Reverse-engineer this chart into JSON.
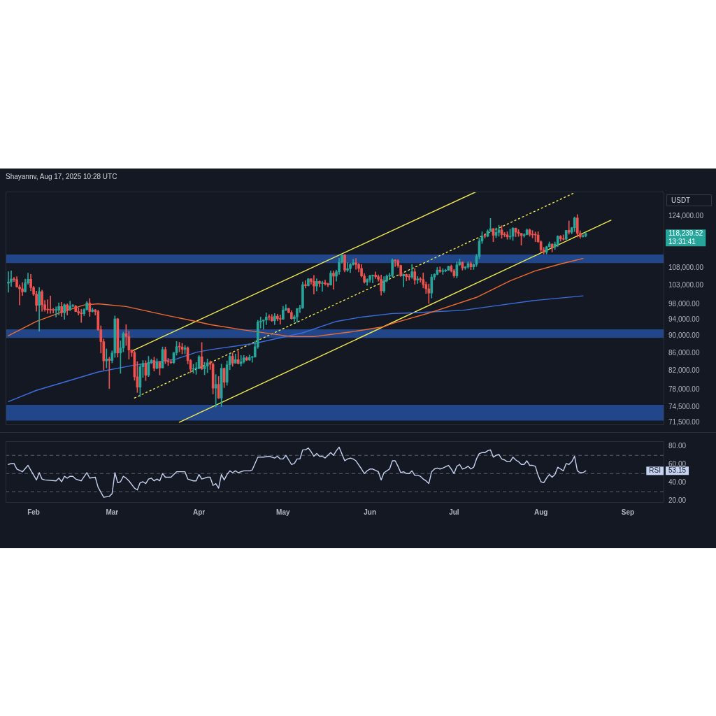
{
  "chart_data": [
    {
      "type": "candlestick",
      "title": "Shayannv, Aug 17, 2025 10:28 UTC",
      "ylabel": "USDT",
      "log": true,
      "tick_labels": "y",
      "xlim": [
        "2025-01-22",
        "2025-09-14"
      ],
      "ylim": [
        71000,
        132300
      ],
      "yticks": [
        {
          "value": 124000,
          "label": "124,000.00"
        },
        {
          "value": 108000,
          "label": "108,000.00"
        },
        {
          "value": 103000,
          "label": "103,000.00"
        },
        {
          "value": 98000,
          "label": "98,000.00"
        },
        {
          "value": 94000,
          "label": "94,000.00"
        },
        {
          "value": 90000,
          "label": "90,000.00"
        },
        {
          "value": 86000,
          "label": "86,000.00"
        },
        {
          "value": 82000,
          "label": "82,000.00"
        },
        {
          "value": 78000,
          "label": "78,000.00"
        },
        {
          "value": 74500,
          "label": "74,500.00"
        },
        {
          "value": 71500,
          "label": "71,500.00"
        }
      ],
      "x": [
        "2025-01-23",
        "2025-01-24",
        "2025-01-25",
        "2025-01-26",
        "2025-01-27",
        "2025-01-28",
        "2025-01-29",
        "2025-01-30",
        "2025-01-31",
        "2025-02-01",
        "2025-02-02",
        "2025-02-03",
        "2025-02-04",
        "2025-02-05",
        "2025-02-06",
        "2025-02-07",
        "2025-02-08",
        "2025-02-09",
        "2025-02-10",
        "2025-02-11",
        "2025-02-12",
        "2025-02-13",
        "2025-02-14",
        "2025-02-15",
        "2025-02-16",
        "2025-02-17",
        "2025-02-18",
        "2025-02-19",
        "2025-02-20",
        "2025-02-21",
        "2025-02-22",
        "2025-02-23",
        "2025-02-24",
        "2025-02-25",
        "2025-02-26",
        "2025-02-27",
        "2025-02-28",
        "2025-03-01",
        "2025-03-02",
        "2025-03-03",
        "2025-03-04",
        "2025-03-05",
        "2025-03-06",
        "2025-03-07",
        "2025-03-08",
        "2025-03-09",
        "2025-03-10",
        "2025-03-11",
        "2025-03-12",
        "2025-03-13",
        "2025-03-14",
        "2025-03-15",
        "2025-03-16",
        "2025-03-17",
        "2025-03-18",
        "2025-03-19",
        "2025-03-20",
        "2025-03-21",
        "2025-03-22",
        "2025-03-23",
        "2025-03-24",
        "2025-03-25",
        "2025-03-26",
        "2025-03-27",
        "2025-03-28",
        "2025-03-29",
        "2025-03-30",
        "2025-03-31",
        "2025-04-01",
        "2025-04-02",
        "2025-04-03",
        "2025-04-04",
        "2025-04-05",
        "2025-04-06",
        "2025-04-07",
        "2025-04-08",
        "2025-04-09",
        "2025-04-10",
        "2025-04-11",
        "2025-04-12",
        "2025-04-13",
        "2025-04-14",
        "2025-04-15",
        "2025-04-16",
        "2025-04-17",
        "2025-04-18",
        "2025-04-19",
        "2025-04-20",
        "2025-04-21",
        "2025-04-22",
        "2025-04-23",
        "2025-04-24",
        "2025-04-25",
        "2025-04-26",
        "2025-04-27",
        "2025-04-28",
        "2025-04-29",
        "2025-04-30",
        "2025-05-01",
        "2025-05-02",
        "2025-05-03",
        "2025-05-04",
        "2025-05-05",
        "2025-05-06",
        "2025-05-07",
        "2025-05-08",
        "2025-05-09",
        "2025-05-10",
        "2025-05-11",
        "2025-05-12",
        "2025-05-13",
        "2025-05-14",
        "2025-05-15",
        "2025-05-16",
        "2025-05-17",
        "2025-05-18",
        "2025-05-19",
        "2025-05-20",
        "2025-05-21",
        "2025-05-22",
        "2025-05-23",
        "2025-05-24",
        "2025-05-25",
        "2025-05-26",
        "2025-05-27",
        "2025-05-28",
        "2025-05-29",
        "2025-05-30",
        "2025-05-31",
        "2025-06-01",
        "2025-06-02",
        "2025-06-03",
        "2025-06-04",
        "2025-06-05",
        "2025-06-06",
        "2025-06-07",
        "2025-06-08",
        "2025-06-09",
        "2025-06-10",
        "2025-06-11",
        "2025-06-12",
        "2025-06-13",
        "2025-06-14",
        "2025-06-15",
        "2025-06-16",
        "2025-06-17",
        "2025-06-18",
        "2025-06-19",
        "2025-06-20",
        "2025-06-21",
        "2025-06-22",
        "2025-06-23",
        "2025-06-24",
        "2025-06-25",
        "2025-06-26",
        "2025-06-27",
        "2025-06-28",
        "2025-06-29",
        "2025-06-30",
        "2025-07-01",
        "2025-07-02",
        "2025-07-03",
        "2025-07-04",
        "2025-07-05",
        "2025-07-06",
        "2025-07-07",
        "2025-07-08",
        "2025-07-09",
        "2025-07-10",
        "2025-07-11",
        "2025-07-12",
        "2025-07-13",
        "2025-07-14",
        "2025-07-15",
        "2025-07-16",
        "2025-07-17",
        "2025-07-18",
        "2025-07-19",
        "2025-07-20",
        "2025-07-21",
        "2025-07-22",
        "2025-07-23",
        "2025-07-24",
        "2025-07-25",
        "2025-07-26",
        "2025-07-27",
        "2025-07-28",
        "2025-07-29",
        "2025-07-30",
        "2025-07-31",
        "2025-08-01",
        "2025-08-02",
        "2025-08-03",
        "2025-08-04",
        "2025-08-05",
        "2025-08-06",
        "2025-08-07",
        "2025-08-08",
        "2025-08-09",
        "2025-08-10",
        "2025-08-11",
        "2025-08-12",
        "2025-08-13",
        "2025-08-14",
        "2025-08-15",
        "2025-08-16",
        "2025-08-17"
      ],
      "ohlc": [
        [
          103650,
          106850,
          101200,
          103950
        ],
        [
          103950,
          107100,
          102750,
          104800
        ],
        [
          104800,
          105300,
          104100,
          104650
        ],
        [
          104650,
          105500,
          102500,
          102600
        ],
        [
          102600,
          103200,
          97800,
          102100
        ],
        [
          102100,
          103800,
          100300,
          101300
        ],
        [
          101300,
          104800,
          101200,
          103750
        ],
        [
          103750,
          106450,
          103300,
          104750
        ],
        [
          104750,
          106100,
          101550,
          102450
        ],
        [
          102450,
          102800,
          100300,
          100650
        ],
        [
          100650,
          101500,
          96150,
          97700
        ],
        [
          97700,
          102500,
          91200,
          101350
        ],
        [
          101350,
          101750,
          96150,
          97850
        ],
        [
          97850,
          99000,
          96150,
          96600
        ],
        [
          96600,
          99200,
          95650,
          96550
        ],
        [
          96550,
          100150,
          95650,
          96500
        ],
        [
          96500,
          96900,
          95700,
          96450
        ],
        [
          96450,
          97300,
          94700,
          96450
        ],
        [
          96450,
          98350,
          95250,
          97400
        ],
        [
          97400,
          98500,
          94850,
          95800
        ],
        [
          95800,
          98100,
          94100,
          97850
        ],
        [
          97850,
          98100,
          95200,
          96600
        ],
        [
          96600,
          98800,
          96300,
          97500
        ],
        [
          97500,
          97950,
          97250,
          97550
        ],
        [
          97550,
          97700,
          96050,
          96100
        ],
        [
          96100,
          97050,
          95200,
          95750
        ],
        [
          95750,
          96700,
          93350,
          95550
        ],
        [
          95550,
          96850,
          95050,
          96600
        ],
        [
          96600,
          98750,
          96400,
          98350
        ],
        [
          98350,
          99500,
          94850,
          96100
        ],
        [
          96100,
          96950,
          95950,
          96550
        ],
        [
          96550,
          96650,
          95200,
          96100
        ],
        [
          96100,
          96500,
          91350,
          91550
        ],
        [
          91550,
          92500,
          86050,
          88700
        ],
        [
          88700,
          89300,
          82250,
          84250
        ],
        [
          84250,
          87000,
          82700,
          84700
        ],
        [
          84700,
          85100,
          78250,
          84350
        ],
        [
          84350,
          86550,
          83800,
          86050
        ],
        [
          86050,
          95000,
          85050,
          94250
        ],
        [
          94250,
          94400,
          85100,
          86050
        ],
        [
          86050,
          88900,
          81500,
          87200
        ],
        [
          87200,
          91000,
          86300,
          90600
        ],
        [
          90600,
          92800,
          87800,
          89950
        ],
        [
          89950,
          91200,
          84650,
          86750
        ],
        [
          86750,
          86800,
          85250,
          86150
        ],
        [
          86150,
          86500,
          80000,
          80750
        ],
        [
          80750,
          84100,
          77450,
          78550
        ],
        [
          78550,
          83600,
          76600,
          82950
        ],
        [
          82950,
          84350,
          80600,
          83700
        ],
        [
          83700,
          84300,
          79950,
          81100
        ],
        [
          81100,
          85300,
          80800,
          83950
        ],
        [
          83950,
          84650,
          83650,
          84350
        ],
        [
          84350,
          85100,
          82000,
          82600
        ],
        [
          82600,
          84750,
          82450,
          84050
        ],
        [
          84050,
          84100,
          81150,
          82700
        ],
        [
          82700,
          87450,
          82650,
          86850
        ],
        [
          86850,
          87450,
          83650,
          84200
        ],
        [
          84200,
          84850,
          83200,
          84050
        ],
        [
          84050,
          84550,
          83650,
          83850
        ],
        [
          83850,
          86200,
          83650,
          86100
        ],
        [
          86100,
          88750,
          85550,
          87500
        ],
        [
          87500,
          88550,
          86300,
          87450
        ],
        [
          87450,
          88300,
          85850,
          86900
        ],
        [
          86900,
          87800,
          85850,
          87250
        ],
        [
          87250,
          87500,
          83600,
          84350
        ],
        [
          84350,
          84600,
          81650,
          82400
        ],
        [
          82400,
          83500,
          81550,
          82550
        ],
        [
          82550,
          83900,
          81300,
          82550
        ],
        [
          82550,
          85500,
          82450,
          85200
        ],
        [
          85200,
          88500,
          82300,
          82500
        ],
        [
          82500,
          83950,
          81200,
          83100
        ],
        [
          83100,
          84700,
          81650,
          83850
        ],
        [
          83850,
          84250,
          82350,
          83500
        ],
        [
          83500,
          83800,
          77150,
          78350
        ],
        [
          78350,
          81250,
          74500,
          79150
        ],
        [
          79150,
          80850,
          76200,
          76300
        ],
        [
          76300,
          83550,
          74600,
          82600
        ],
        [
          82600,
          82700,
          78450,
          79600
        ],
        [
          79600,
          84250,
          78950,
          83400
        ],
        [
          83400,
          85900,
          82300,
          85300
        ],
        [
          85300,
          86100,
          83050,
          83750
        ],
        [
          83750,
          85800,
          83700,
          84550
        ],
        [
          84550,
          86500,
          83600,
          83650
        ],
        [
          83650,
          85500,
          83100,
          84050
        ],
        [
          84050,
          85500,
          83750,
          84950
        ],
        [
          84950,
          85250,
          84300,
          84450
        ],
        [
          84450,
          85600,
          84350,
          85050
        ],
        [
          85050,
          85300,
          83950,
          85150
        ],
        [
          85150,
          88850,
          85050,
          87500
        ],
        [
          87500,
          93900,
          87100,
          93450
        ],
        [
          93450,
          94700,
          91950,
          93700
        ],
        [
          93700,
          94000,
          91650,
          93950
        ],
        [
          93950,
          95750,
          92800,
          94700
        ],
        [
          94700,
          95300,
          93900,
          94650
        ],
        [
          94650,
          95350,
          93600,
          93750
        ],
        [
          93750,
          95600,
          92800,
          94950
        ],
        [
          94950,
          95450,
          93750,
          94250
        ],
        [
          94250,
          95250,
          92900,
          94150
        ],
        [
          94150,
          97450,
          94100,
          96500
        ],
        [
          96500,
          97900,
          96300,
          96900
        ],
        [
          96900,
          96950,
          95750,
          95850
        ],
        [
          95850,
          96300,
          94150,
          94300
        ],
        [
          94300,
          95200,
          93500,
          94750
        ],
        [
          94750,
          96900,
          93400,
          96850
        ],
        [
          96850,
          97750,
          95800,
          97050
        ],
        [
          97050,
          104000,
          96900,
          103250
        ],
        [
          103250,
          104350,
          102300,
          102950
        ],
        [
          102950,
          104950,
          102850,
          104850
        ],
        [
          104850,
          104950,
          103350,
          104150
        ],
        [
          104150,
          105800,
          100700,
          102850
        ],
        [
          102850,
          104900,
          101500,
          104150
        ],
        [
          104150,
          104300,
          102650,
          103550
        ],
        [
          103550,
          104200,
          101400,
          103750
        ],
        [
          103750,
          104550,
          103100,
          103500
        ],
        [
          103500,
          103700,
          102650,
          103150
        ],
        [
          103150,
          107100,
          103100,
          106450
        ],
        [
          106450,
          107100,
          102000,
          105600
        ],
        [
          105600,
          107300,
          104200,
          106850
        ],
        [
          106850,
          110800,
          106100,
          109650
        ],
        [
          109650,
          111950,
          109300,
          111700
        ],
        [
          111700,
          111900,
          106800,
          107300
        ],
        [
          107300,
          109500,
          106900,
          107750
        ],
        [
          107750,
          109300,
          106600,
          108950
        ],
        [
          108950,
          110450,
          108700,
          109450
        ],
        [
          109450,
          110700,
          107550,
          108950
        ],
        [
          108950,
          109300,
          106800,
          107800
        ],
        [
          107800,
          108900,
          105350,
          105650
        ],
        [
          105650,
          106300,
          103650,
          103950
        ],
        [
          103950,
          104900,
          103050,
          104650
        ],
        [
          104650,
          105900,
          103900,
          105700
        ],
        [
          105700,
          105950,
          103700,
          105900
        ],
        [
          105900,
          106800,
          104900,
          105450
        ],
        [
          105450,
          105950,
          104200,
          104750
        ],
        [
          104750,
          105900,
          100400,
          101550
        ],
        [
          101550,
          105500,
          101100,
          104300
        ],
        [
          104300,
          105950,
          103950,
          105600
        ],
        [
          105600,
          106450,
          104950,
          105750
        ],
        [
          105750,
          110600,
          105350,
          110250
        ],
        [
          110250,
          110400,
          108350,
          110000
        ],
        [
          110000,
          110400,
          108100,
          108650
        ],
        [
          108650,
          108800,
          105500,
          105650
        ],
        [
          105650,
          106200,
          102650,
          106100
        ],
        [
          106100,
          106200,
          104300,
          105450
        ],
        [
          105450,
          106150,
          104500,
          105350
        ],
        [
          105350,
          108950,
          104950,
          106850
        ],
        [
          106850,
          107800,
          103350,
          104500
        ],
        [
          104500,
          105550,
          103550,
          104850
        ],
        [
          104850,
          105250,
          103900,
          104650
        ],
        [
          104650,
          106500,
          102350,
          103300
        ],
        [
          103300,
          104000,
          100850,
          102100
        ],
        [
          102100,
          103400,
          98200,
          100950
        ],
        [
          100950,
          106100,
          99600,
          105350
        ],
        [
          105350,
          106300,
          104600,
          106100
        ],
        [
          106100,
          108100,
          105950,
          107350
        ],
        [
          107350,
          108250,
          106650,
          106950
        ],
        [
          106950,
          107750,
          106100,
          107050
        ],
        [
          107050,
          107600,
          106850,
          107300
        ],
        [
          107300,
          108500,
          107200,
          108400
        ],
        [
          108400,
          108800,
          106750,
          107150
        ],
        [
          107150,
          107550,
          105250,
          105700
        ],
        [
          105700,
          109750,
          105100,
          108850
        ],
        [
          108850,
          110550,
          108600,
          109600
        ],
        [
          109600,
          109750,
          107300,
          107950
        ],
        [
          107950,
          108400,
          107500,
          108200
        ],
        [
          108200,
          109700,
          107800,
          109200
        ],
        [
          109200,
          109700,
          107450,
          108250
        ],
        [
          108250,
          109200,
          107500,
          108950
        ],
        [
          108950,
          111950,
          108350,
          111300
        ],
        [
          111300,
          116850,
          110600,
          115950
        ],
        [
          115950,
          118850,
          115200,
          117500
        ],
        [
          117500,
          118200,
          116900,
          117450
        ],
        [
          117450,
          119500,
          117250,
          119100
        ],
        [
          119100,
          123200,
          118900,
          119850
        ],
        [
          119850,
          119950,
          115750,
          117750
        ],
        [
          117750,
          120100,
          117000,
          118650
        ],
        [
          118650,
          120950,
          117450,
          119450
        ],
        [
          119450,
          120850,
          116800,
          117950
        ],
        [
          117950,
          118650,
          117300,
          117900
        ],
        [
          117900,
          118900,
          116500,
          117250
        ],
        [
          117250,
          119700,
          116500,
          117450
        ],
        [
          117450,
          120250,
          116150,
          120000
        ],
        [
          120000,
          120100,
          117300,
          118750
        ],
        [
          118750,
          119550,
          117400,
          118350
        ],
        [
          118350,
          118450,
          114700,
          117650
        ],
        [
          117650,
          118300,
          117150,
          117950
        ],
        [
          117950,
          119800,
          117850,
          119450
        ],
        [
          119450,
          119800,
          117450,
          118050
        ],
        [
          118050,
          119250,
          116950,
          117900
        ],
        [
          117900,
          118800,
          115750,
          117850
        ],
        [
          117850,
          118900,
          115500,
          115750
        ],
        [
          115750,
          116050,
          112700,
          113300
        ],
        [
          113300,
          114050,
          112000,
          112550
        ],
        [
          112550,
          114400,
          112000,
          114200
        ],
        [
          114200,
          115700,
          114100,
          115050
        ],
        [
          115050,
          115100,
          112650,
          114100
        ],
        [
          114100,
          115700,
          113350,
          115000
        ],
        [
          115000,
          117650,
          114250,
          117450
        ],
        [
          117450,
          117700,
          115900,
          116650
        ],
        [
          116650,
          117900,
          116250,
          116500
        ],
        [
          116500,
          119350,
          116450,
          119300
        ],
        [
          119300,
          122350,
          118100,
          118700
        ],
        [
          118700,
          120300,
          118200,
          120150
        ],
        [
          120150,
          123650,
          118900,
          123300
        ],
        [
          123300,
          124450,
          117200,
          118350
        ],
        [
          118350,
          119200,
          116800,
          117350
        ],
        [
          117350,
          117950,
          117150,
          117650
        ],
        [
          117650,
          118600,
          117250,
          118239.52
        ]
      ],
      "series": [
        {
          "type": "line",
          "color": "#f26b2f",
          "x": [
            "2025-01-23",
            "2025-02-02",
            "2025-02-10",
            "2025-02-19",
            "2025-02-24",
            "2025-03-06",
            "2025-03-20",
            "2025-03-31",
            "2025-04-05",
            "2025-04-17",
            "2025-05-04",
            "2025-05-12",
            "2025-05-25",
            "2025-06-06",
            "2025-06-09",
            "2025-06-14",
            "2025-06-22",
            "2025-07-09",
            "2025-07-21",
            "2025-07-30",
            "2025-08-08",
            "2025-08-16"
          ],
          "values": [
            90100,
            93600,
            95700,
            97800,
            98100,
            97400,
            95200,
            93600,
            92800,
            91500,
            89900,
            89900,
            91000,
            92300,
            93100,
            94100,
            95700,
            99800,
            104300,
            107100,
            109100,
            110700
          ]
        },
        {
          "type": "line",
          "color": "#3b6fe0",
          "x": [
            "2025-01-23",
            "2025-02-02",
            "2025-02-14",
            "2025-02-24",
            "2025-03-08",
            "2025-03-24",
            "2025-03-31",
            "2025-04-05",
            "2025-04-21",
            "2025-05-08",
            "2025-05-20",
            "2025-05-29",
            "2025-06-09",
            "2025-06-14",
            "2025-07-04",
            "2025-07-13",
            "2025-07-30",
            "2025-08-16"
          ],
          "values": [
            75600,
            77900,
            80000,
            81800,
            83200,
            84700,
            86200,
            86800,
            88300,
            90800,
            93600,
            94700,
            95600,
            95700,
            96400,
            97300,
            99000,
            100200
          ]
        },
        {
          "type": "line",
          "color": "#f2e94e",
          "line_style": "solid",
          "x": [
            "2025-03-08",
            "2025-07-09"
          ],
          "values": [
            86500,
            132300
          ]
        },
        {
          "type": "line",
          "color": "#f2e94e",
          "line_style": "dotted",
          "x": [
            "2025-03-09",
            "2025-08-13"
          ],
          "values": [
            76330,
            131900
          ]
        },
        {
          "type": "line",
          "color": "#f2e94e",
          "line_style": "solid",
          "x": [
            "2025-03-25",
            "2025-08-26"
          ],
          "values": [
            71550,
            122600
          ]
        }
      ],
      "bands": [
        {
          "axis": "y",
          "from": 109330,
          "to": 111850,
          "color": "#21468a"
        },
        {
          "axis": "y",
          "from": 89580,
          "to": 91640,
          "color": "#21468a"
        },
        {
          "axis": "y",
          "from": 71870,
          "to": 74950,
          "color": "#21468a"
        }
      ],
      "annotations": [
        "118,239.52",
        "13:31:41"
      ]
    },
    {
      "type": "line",
      "xlim": [
        "2025-01-22",
        "2025-09-14"
      ],
      "xticks": [
        {
          "value": "2025-02-01",
          "label": "Feb"
        },
        {
          "value": "2025-03-01",
          "label": "Mar"
        },
        {
          "value": "2025-04-01",
          "label": "Apr"
        },
        {
          "value": "2025-05-01",
          "label": "May"
        },
        {
          "value": "2025-06-01",
          "label": "Jun"
        },
        {
          "value": "2025-07-01",
          "label": "Jul"
        },
        {
          "value": "2025-08-01",
          "label": "Aug"
        },
        {
          "value": "2025-09-01",
          "label": "Sep"
        }
      ],
      "ylim": [
        18,
        85.5
      ],
      "yticks": [
        {
          "value": 80,
          "label": "80.00"
        },
        {
          "value": 60,
          "label": "60.00"
        },
        {
          "value": 40,
          "label": "40.00"
        },
        {
          "value": 20,
          "label": "20.00"
        }
      ],
      "ref_lines": [
        {
          "axis": "y",
          "value": 70,
          "line_style": "dashed",
          "color": "#5d606b"
        },
        {
          "axis": "y",
          "value": 50,
          "line_style": "dashed",
          "color": "#5d606b"
        },
        {
          "axis": "y",
          "value": 30,
          "line_style": "dashed",
          "color": "#5d606b"
        }
      ],
      "series": [
        {
          "name": "RSI",
          "color": "#c5d3f0",
          "x": [
            "2025-01-23",
            "2025-01-24",
            "2025-01-25",
            "2025-01-26",
            "2025-01-28",
            "2025-01-30",
            "2025-02-02",
            "2025-02-03",
            "2025-02-04",
            "2025-02-05",
            "2025-02-09",
            "2025-02-10",
            "2025-02-11",
            "2025-02-12",
            "2025-02-13",
            "2025-02-14",
            "2025-02-15",
            "2025-02-16",
            "2025-02-18",
            "2025-02-20",
            "2025-02-21",
            "2025-02-23",
            "2025-02-24",
            "2025-02-26",
            "2025-02-28",
            "2025-03-01",
            "2025-03-02",
            "2025-03-03",
            "2025-03-04",
            "2025-03-05",
            "2025-03-06",
            "2025-03-07",
            "2025-03-09",
            "2025-03-10",
            "2025-03-11",
            "2025-03-12",
            "2025-03-13",
            "2025-03-14",
            "2025-03-15",
            "2025-03-16",
            "2025-03-17",
            "2025-03-18",
            "2025-03-19",
            "2025-03-20",
            "2025-03-22",
            "2025-03-24",
            "2025-03-27",
            "2025-03-28",
            "2025-03-30",
            "2025-03-31",
            "2025-04-01",
            "2025-04-02",
            "2025-04-04",
            "2025-04-05",
            "2025-04-06",
            "2025-04-07",
            "2025-04-08",
            "2025-04-09",
            "2025-04-10",
            "2025-04-11",
            "2025-04-12",
            "2025-04-13",
            "2025-04-14",
            "2025-04-15",
            "2025-04-16",
            "2025-04-17",
            "2025-04-19",
            "2025-04-20",
            "2025-04-22",
            "2025-04-24",
            "2025-04-26",
            "2025-04-28",
            "2025-04-29",
            "2025-04-30",
            "2025-05-01",
            "2025-05-02",
            "2025-05-04",
            "2025-05-05",
            "2025-05-06",
            "2025-05-07",
            "2025-05-08",
            "2025-05-09",
            "2025-05-10",
            "2025-05-11",
            "2025-05-12",
            "2025-05-13",
            "2025-05-14",
            "2025-05-15",
            "2025-05-16",
            "2025-05-18",
            "2025-05-19",
            "2025-05-20",
            "2025-05-21",
            "2025-05-23",
            "2025-05-24",
            "2025-05-25",
            "2025-05-26",
            "2025-05-27",
            "2025-05-29",
            "2025-05-30",
            "2025-05-31",
            "2025-06-01",
            "2025-06-02",
            "2025-06-04",
            "2025-06-05",
            "2025-06-06",
            "2025-06-07",
            "2025-06-08",
            "2025-06-09",
            "2025-06-10",
            "2025-06-11",
            "2025-06-12",
            "2025-06-13",
            "2025-06-14",
            "2025-06-15",
            "2025-06-16",
            "2025-06-17",
            "2025-06-18",
            "2025-06-19",
            "2025-06-20",
            "2025-06-21",
            "2025-06-22",
            "2025-06-23",
            "2025-06-24",
            "2025-06-25",
            "2025-06-26",
            "2025-06-27",
            "2025-06-29",
            "2025-06-30",
            "2025-07-01",
            "2025-07-02",
            "2025-07-03",
            "2025-07-04",
            "2025-07-05",
            "2025-07-06",
            "2025-07-07",
            "2025-07-08",
            "2025-07-09",
            "2025-07-10",
            "2025-07-11",
            "2025-07-12",
            "2025-07-13",
            "2025-07-14",
            "2025-07-15",
            "2025-07-16",
            "2025-07-17",
            "2025-07-18",
            "2025-07-19",
            "2025-07-20",
            "2025-07-21",
            "2025-07-22",
            "2025-07-23",
            "2025-07-24",
            "2025-07-25",
            "2025-07-26",
            "2025-07-27",
            "2025-07-28",
            "2025-07-29",
            "2025-07-30",
            "2025-07-31",
            "2025-08-01",
            "2025-08-02",
            "2025-08-03",
            "2025-08-04",
            "2025-08-05",
            "2025-08-06",
            "2025-08-07",
            "2025-08-08",
            "2025-08-09",
            "2025-08-10",
            "2025-08-11",
            "2025-08-12",
            "2025-08-13",
            "2025-08-14",
            "2025-08-15",
            "2025-08-16",
            "2025-08-17"
          ],
          "values": [
            60,
            61,
            61,
            55,
            52,
            59,
            43,
            51,
            44,
            43,
            42,
            45,
            41,
            47,
            45,
            47,
            47,
            44,
            42,
            51,
            45,
            46,
            35,
            24,
            25,
            28,
            51,
            40,
            41,
            47,
            45,
            42,
            34,
            32,
            40,
            41,
            39,
            44,
            45,
            42,
            44,
            42,
            50,
            46,
            46,
            52,
            52,
            44,
            42,
            42,
            49,
            44,
            46,
            46,
            37,
            39,
            34,
            49,
            43,
            49,
            53,
            51,
            53,
            51,
            52,
            53,
            53,
            54,
            68,
            68,
            69,
            67,
            69,
            66,
            66,
            70,
            60,
            61,
            66,
            66,
            76,
            76,
            78,
            74,
            69,
            72,
            69,
            69,
            67,
            73,
            70,
            75,
            79,
            64,
            66,
            67,
            66,
            64,
            55,
            50,
            53,
            55,
            55,
            52,
            43,
            51,
            53,
            55,
            64,
            64,
            58,
            51,
            52,
            50,
            50,
            53,
            48,
            48,
            47,
            44,
            42,
            39,
            52,
            55,
            56,
            55,
            56,
            59,
            55,
            50,
            58,
            60,
            55,
            56,
            58,
            55,
            57,
            66,
            72,
            73,
            73,
            75,
            76,
            68,
            70,
            71,
            66,
            65,
            63,
            63,
            68,
            65,
            63,
            60,
            60,
            64,
            59,
            59,
            58,
            48,
            41,
            40,
            45,
            49,
            46,
            49,
            57,
            55,
            53,
            61,
            60,
            63,
            69,
            53,
            51,
            51,
            53
          ]
        }
      ],
      "annotations": [
        "53.15"
      ]
    }
  ]
}
